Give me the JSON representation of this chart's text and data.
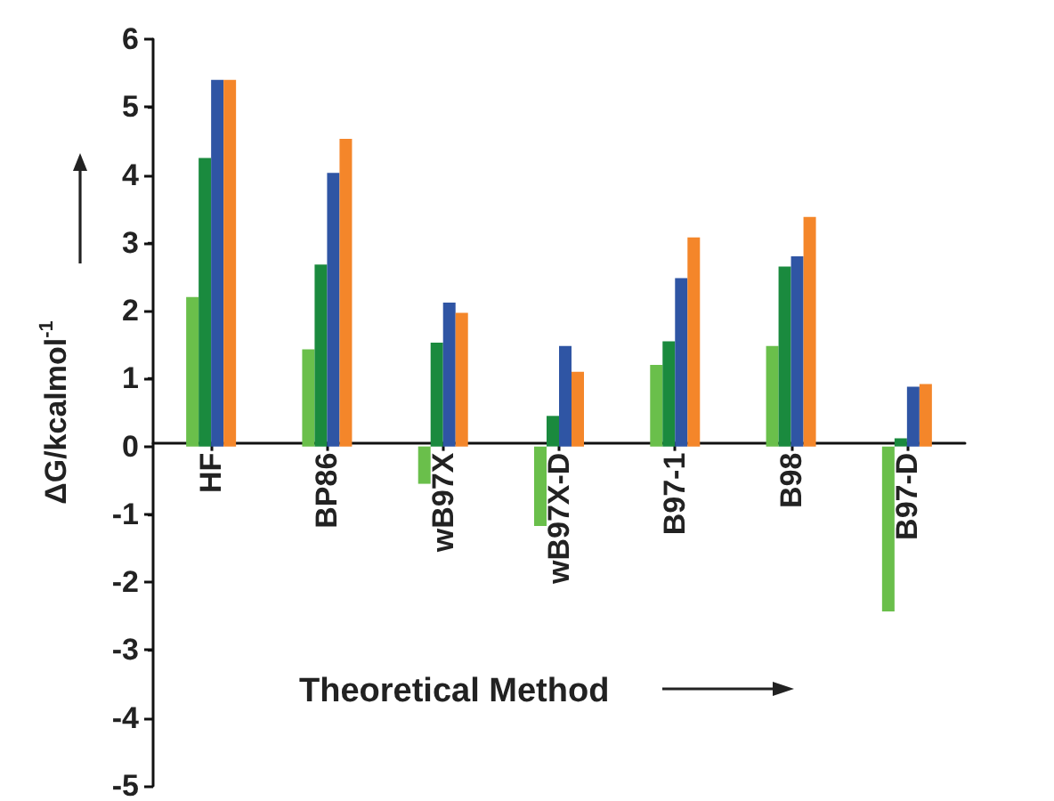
{
  "chart_data": {
    "type": "bar",
    "xlabel": "Theoretical Method",
    "ylabel": "ΔG/kcalmol$^{-1}$",
    "categories": [
      "HF",
      "BP86",
      "wB97X",
      "wB97X-D",
      "B97-1",
      "B98",
      "B97-D"
    ],
    "series": [
      {
        "color": "#6abf4b",
        "values": [
          2.2,
          1.43,
          -0.55,
          -1.17,
          1.2,
          1.48,
          -2.43
        ]
      },
      {
        "color": "#1a8a3e",
        "values": [
          4.25,
          2.68,
          1.53,
          0.45,
          1.55,
          2.65,
          0.12
        ]
      },
      {
        "color": "#2f55a4",
        "values": [
          5.4,
          4.03,
          2.12,
          1.48,
          2.48,
          2.8,
          0.88
        ]
      },
      {
        "color": "#f4862a",
        "values": [
          5.4,
          4.53,
          1.97,
          1.1,
          3.08,
          3.38,
          0.92
        ]
      }
    ],
    "ylim": [
      -5,
      6
    ],
    "yticks": [
      -5,
      -4,
      -3,
      -2,
      -1,
      0,
      1,
      2,
      3,
      4,
      5,
      6
    ]
  }
}
